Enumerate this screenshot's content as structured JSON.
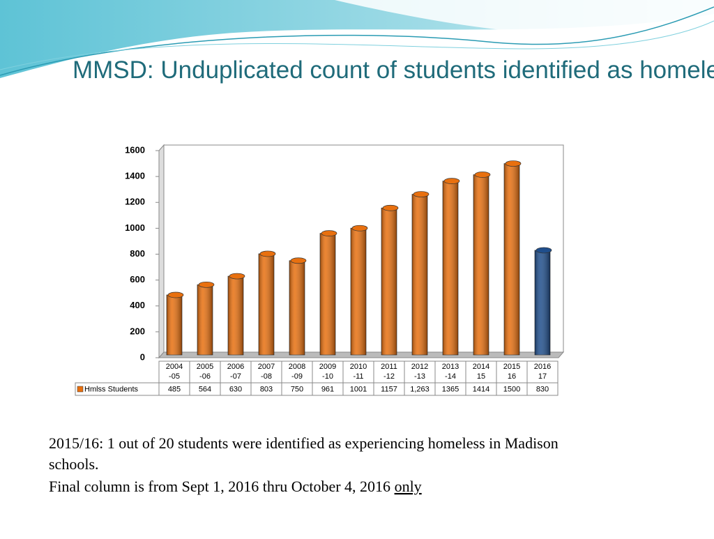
{
  "chart_data": {
    "type": "bar",
    "title": "MMSD: Unduplicated count of students identified as homeless",
    "categories": [
      "2004\n-05",
      "2005\n-06",
      "2006\n-07",
      "2007\n-08",
      "2008\n-09",
      "2009\n-10",
      "2010\n-11",
      "2011\n-12",
      "2012\n-13",
      "2013\n-14",
      "2014\n15",
      "2015\n16",
      "2016\n17"
    ],
    "series": [
      {
        "name": "Hmlss Students",
        "color": "#e8700f",
        "colors": [
          "#e8700f",
          "#e8700f",
          "#e8700f",
          "#e8700f",
          "#e8700f",
          "#e8700f",
          "#e8700f",
          "#e8700f",
          "#e8700f",
          "#e8700f",
          "#e8700f",
          "#e8700f",
          "#1f4e8c"
        ],
        "values": [
          485,
          564,
          630,
          803,
          750,
          961,
          1001,
          1157,
          1263,
          1365,
          1414,
          1500,
          830
        ],
        "value_labels": [
          "485",
          "564",
          "630",
          "803",
          "750",
          "961",
          "1001",
          "1157",
          "1,263",
          "1365",
          "1414",
          "1500",
          "830"
        ]
      }
    ],
    "ylim": [
      0,
      1600
    ],
    "yticks": [
      0,
      200,
      400,
      600,
      800,
      1000,
      1200,
      1400,
      1600
    ],
    "grid": false,
    "notes": [
      "2015/16: 1 out of 20 students were identified as experiencing homeless in Madison schools.",
      "Final column is from Sept 1, 2016 thru October 4, 2016"
    ],
    "notes_emphasis": "only"
  }
}
